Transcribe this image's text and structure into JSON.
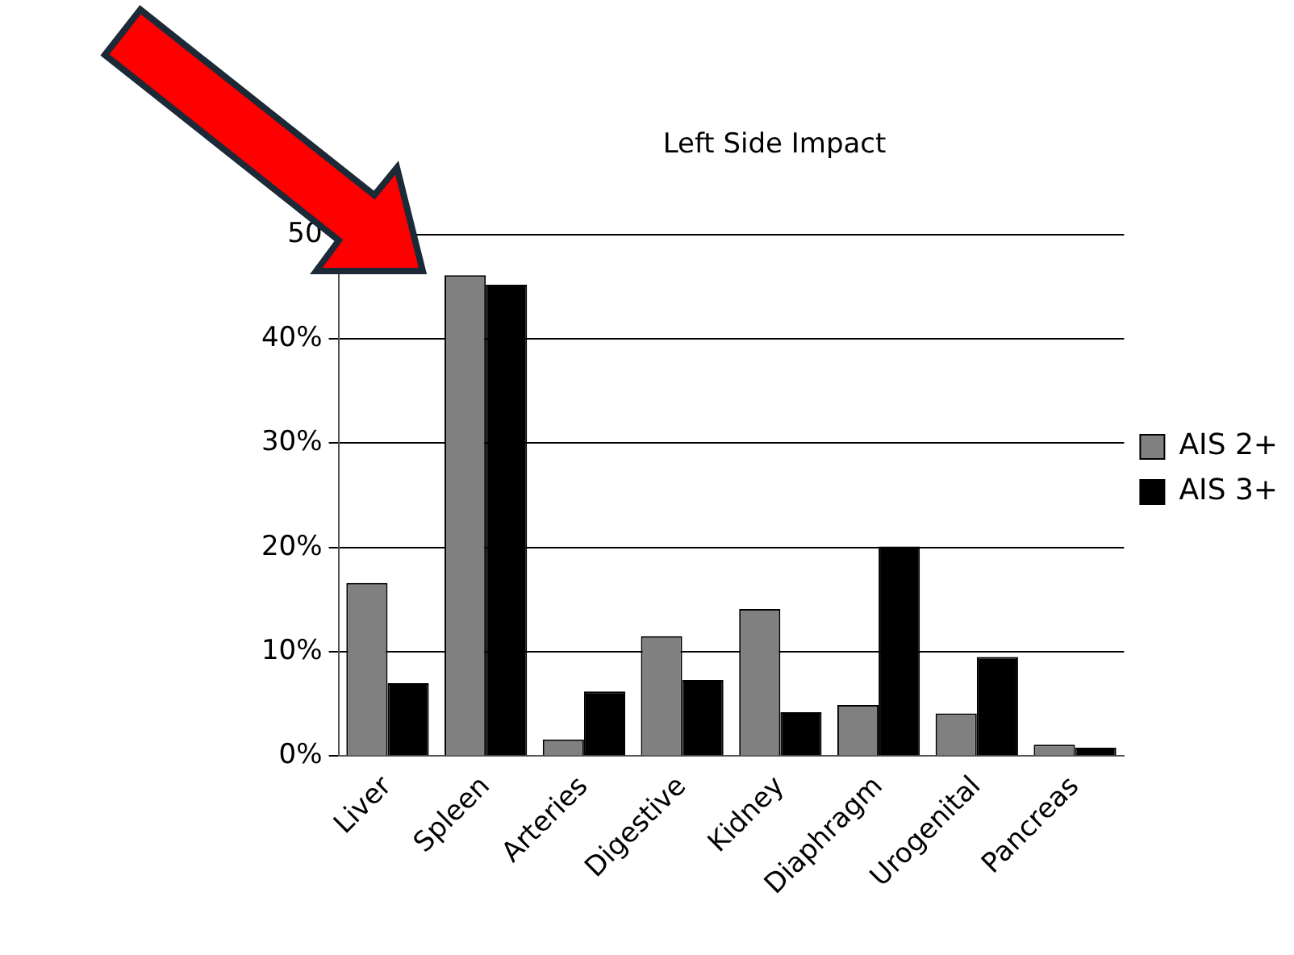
{
  "chart_data": {
    "type": "bar",
    "title": "Left Side Impact",
    "categories": [
      "Liver",
      "Spleen",
      "Arteries",
      "Digestive",
      "Kidney",
      "Diaphragm",
      "Urogenital",
      "Pancreas"
    ],
    "series": [
      {
        "name": "AIS 2+",
        "color": "#808080",
        "values": [
          16.6,
          46.1,
          1.6,
          11.5,
          14.1,
          4.9,
          4.1,
          1.1
        ]
      },
      {
        "name": "AIS 3+",
        "color": "#000000",
        "values": [
          7.0,
          45.2,
          6.2,
          7.3,
          4.2,
          20.1,
          9.5,
          0.8
        ]
      }
    ],
    "ylim": [
      0,
      50
    ],
    "yticks": [
      {
        "value": 0,
        "label": "0%"
      },
      {
        "value": 10,
        "label": "10%"
      },
      {
        "value": 20,
        "label": "20%"
      },
      {
        "value": 30,
        "label": "30%"
      },
      {
        "value": 40,
        "label": "40%"
      },
      {
        "value": 50,
        "label": "50"
      }
    ],
    "grid": "y",
    "legend": "right"
  }
}
